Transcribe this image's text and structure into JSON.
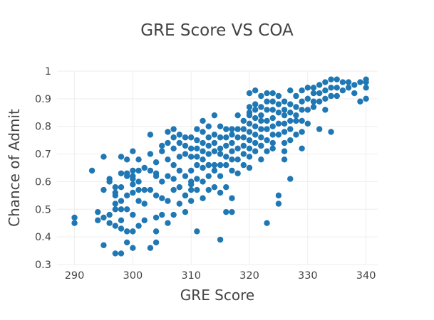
{
  "chart_data": {
    "type": "scatter",
    "title": "GRE Score VS COA",
    "xlabel": "GRE Score",
    "ylabel": "Chance of Admit",
    "xlim": [
      287,
      342
    ],
    "ylim": [
      0.3,
      1.0
    ],
    "x_ticks": [
      290,
      300,
      310,
      320,
      330,
      340
    ],
    "y_ticks": [
      0.3,
      0.4,
      0.5,
      0.6,
      0.7,
      0.8,
      0.9,
      1.0
    ],
    "x_tick_labels": [
      "290",
      "300",
      "310",
      "320",
      "330",
      "340"
    ],
    "y_tick_labels": [
      "0.3",
      "0.4",
      "0.5",
      "0.6",
      "0.7",
      "0.8",
      "0.9",
      "1"
    ],
    "grid": true,
    "marker_color": "#1f77b4",
    "x": [
      290,
      290,
      293,
      294,
      294,
      295,
      295,
      295,
      295,
      296,
      296,
      296,
      296,
      297,
      297,
      297,
      297,
      297,
      297,
      297,
      298,
      298,
      298,
      298,
      298,
      298,
      298,
      298,
      299,
      299,
      299,
      299,
      299,
      299,
      299,
      300,
      300,
      300,
      300,
      300,
      300,
      300,
      300,
      300,
      301,
      301,
      301,
      301,
      301,
      302,
      302,
      302,
      302,
      303,
      303,
      303,
      303,
      303,
      304,
      304,
      304,
      304,
      304,
      304,
      305,
      305,
      305,
      305,
      305,
      306,
      306,
      306,
      306,
      306,
      306,
      307,
      307,
      307,
      307,
      307,
      307,
      307,
      308,
      308,
      308,
      308,
      308,
      308,
      309,
      309,
      309,
      309,
      309,
      309,
      310,
      310,
      310,
      310,
      310,
      310,
      310,
      311,
      311,
      311,
      311,
      311,
      311,
      311,
      311,
      312,
      312,
      312,
      312,
      312,
      312,
      312,
      312,
      313,
      313,
      313,
      313,
      313,
      313,
      313,
      314,
      314,
      314,
      314,
      314,
      314,
      314,
      315,
      315,
      315,
      315,
      315,
      315,
      315,
      315,
      316,
      316,
      316,
      316,
      316,
      316,
      316,
      317,
      317,
      317,
      317,
      317,
      317,
      317,
      318,
      318,
      318,
      318,
      318,
      318,
      319,
      319,
      319,
      319,
      319,
      319,
      320,
      320,
      320,
      320,
      320,
      320,
      320,
      320,
      320,
      321,
      321,
      321,
      321,
      321,
      321,
      321,
      321,
      322,
      322,
      322,
      322,
      322,
      322,
      322,
      322,
      323,
      323,
      323,
      323,
      323,
      323,
      323,
      323,
      324,
      324,
      324,
      324,
      324,
      324,
      324,
      324,
      325,
      325,
      325,
      325,
      325,
      325,
      325,
      326,
      326,
      326,
      326,
      326,
      326,
      326,
      327,
      327,
      327,
      327,
      327,
      327,
      327,
      328,
      328,
      328,
      328,
      328,
      329,
      329,
      329,
      329,
      329,
      330,
      330,
      330,
      330,
      331,
      331,
      331,
      331,
      332,
      332,
      332,
      332,
      333,
      333,
      333,
      334,
      334,
      334,
      334,
      335,
      335,
      335,
      336,
      336,
      337,
      337,
      338,
      338,
      339,
      339,
      340,
      340,
      340,
      340,
      320,
      322,
      326,
      313,
      310,
      304,
      317,
      329,
      309,
      301,
      333
    ],
    "y": [
      0.47,
      0.45,
      0.64,
      0.49,
      0.46,
      0.69,
      0.57,
      0.47,
      0.37,
      0.61,
      0.48,
      0.45,
      0.6,
      0.58,
      0.55,
      0.52,
      0.44,
      0.34,
      0.5,
      0.56,
      0.69,
      0.58,
      0.53,
      0.46,
      0.43,
      0.5,
      0.63,
      0.34,
      0.68,
      0.55,
      0.62,
      0.42,
      0.38,
      0.5,
      0.63,
      0.71,
      0.64,
      0.62,
      0.59,
      0.56,
      0.48,
      0.42,
      0.36,
      0.61,
      0.68,
      0.6,
      0.57,
      0.53,
      0.44,
      0.65,
      0.57,
      0.52,
      0.46,
      0.77,
      0.7,
      0.64,
      0.57,
      0.36,
      0.67,
      0.62,
      0.55,
      0.47,
      0.42,
      0.38,
      0.73,
      0.71,
      0.6,
      0.54,
      0.48,
      0.78,
      0.74,
      0.68,
      0.62,
      0.53,
      0.45,
      0.79,
      0.76,
      0.72,
      0.66,
      0.61,
      0.57,
      0.48,
      0.77,
      0.74,
      0.69,
      0.64,
      0.58,
      0.52,
      0.76,
      0.73,
      0.7,
      0.62,
      0.55,
      0.49,
      0.76,
      0.72,
      0.69,
      0.64,
      0.6,
      0.57,
      0.53,
      0.79,
      0.75,
      0.72,
      0.69,
      0.66,
      0.61,
      0.57,
      0.42,
      0.82,
      0.78,
      0.74,
      0.71,
      0.68,
      0.65,
      0.6,
      0.54,
      0.8,
      0.76,
      0.73,
      0.7,
      0.66,
      0.62,
      0.57,
      0.84,
      0.77,
      0.74,
      0.71,
      0.66,
      0.64,
      0.58,
      0.8,
      0.76,
      0.72,
      0.7,
      0.66,
      0.62,
      0.56,
      0.39,
      0.79,
      0.76,
      0.73,
      0.69,
      0.66,
      0.58,
      0.49,
      0.79,
      0.77,
      0.74,
      0.71,
      0.68,
      0.64,
      0.49,
      0.84,
      0.79,
      0.76,
      0.72,
      0.68,
      0.63,
      0.82,
      0.79,
      0.76,
      0.73,
      0.7,
      0.66,
      0.92,
      0.87,
      0.85,
      0.81,
      0.78,
      0.75,
      0.72,
      0.69,
      0.65,
      0.93,
      0.88,
      0.86,
      0.83,
      0.8,
      0.77,
      0.74,
      0.71,
      0.91,
      0.87,
      0.84,
      0.82,
      0.79,
      0.76,
      0.73,
      0.68,
      0.92,
      0.89,
      0.86,
      0.82,
      0.79,
      0.75,
      0.71,
      0.45,
      0.92,
      0.89,
      0.86,
      0.83,
      0.8,
      0.77,
      0.74,
      0.72,
      0.91,
      0.88,
      0.85,
      0.81,
      0.77,
      0.55,
      0.52,
      0.89,
      0.86,
      0.84,
      0.81,
      0.78,
      0.74,
      0.71,
      0.93,
      0.88,
      0.85,
      0.82,
      0.79,
      0.75,
      0.61,
      0.91,
      0.87,
      0.84,
      0.82,
      0.77,
      0.93,
      0.89,
      0.86,
      0.82,
      0.78,
      0.94,
      0.9,
      0.86,
      0.81,
      0.94,
      0.92,
      0.89,
      0.87,
      0.95,
      0.92,
      0.89,
      0.79,
      0.96,
      0.93,
      0.9,
      0.97,
      0.94,
      0.91,
      0.78,
      0.97,
      0.94,
      0.91,
      0.96,
      0.93,
      0.96,
      0.94,
      0.95,
      0.92,
      0.96,
      0.89,
      0.97,
      0.96,
      0.94,
      0.9,
      0.84,
      0.73,
      0.68,
      0.66,
      0.59,
      0.63,
      0.54,
      0.72,
      0.55,
      0.64,
      0.86
    ]
  }
}
